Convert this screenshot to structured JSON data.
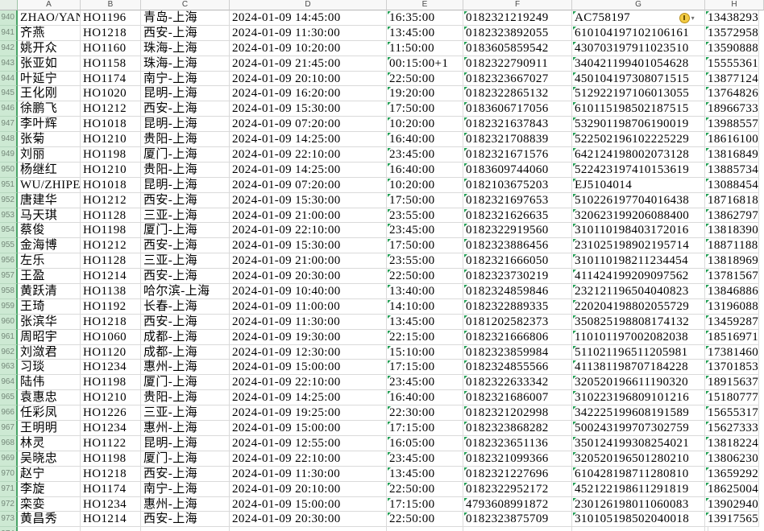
{
  "sheet": {
    "col_headers": [
      "A",
      "B",
      "C",
      "D",
      "E",
      "F",
      "G",
      "H"
    ],
    "visible_row_range": "940-974",
    "colors": {
      "row_header_bg": "#cde9d3",
      "row_header_accent": "#4aa468",
      "grid_line": "#dadada",
      "text_indicator_triangle": "#1f9e52",
      "warning_icon_fill": "#f3cb43",
      "warning_icon_border": "#b98f19"
    },
    "icons": {
      "warning_icon": "yellow-circle-exclamation",
      "warning_caret": "▾"
    }
  },
  "rows": [
    {
      "n": "940",
      "name": "ZHAO/YAN",
      "flight": "HO1196",
      "route": "青岛-上海",
      "depart": "2024-01-09 14:45:00",
      "arrive": "16:35:00",
      "ticket": "0182321219249",
      "id": "AC758197",
      "phone": "13438293",
      "warn": true
    },
    {
      "n": "941",
      "name": "齐燕",
      "flight": "HO1218",
      "route": "西安-上海",
      "depart": "2024-01-09 11:30:00",
      "arrive": "13:45:00",
      "ticket": "0182323892055",
      "id": "610104197102106161",
      "phone": "13572958"
    },
    {
      "n": "942",
      "name": "姚开众",
      "flight": "HO1160",
      "route": "珠海-上海",
      "depart": "2024-01-09 10:20:00",
      "arrive": "11:50:00",
      "ticket": "0183605859542",
      "id": "430703197911023510",
      "phone": "13590888"
    },
    {
      "n": "943",
      "name": "张亚如",
      "flight": "HO1158",
      "route": "珠海-上海",
      "depart": "2024-01-09 21:45:00",
      "arrive": "00:15:00+1",
      "ticket": "0182322790911",
      "id": "340421199401054628",
      "phone": "15555361"
    },
    {
      "n": "944",
      "name": "叶延宁",
      "flight": "HO1174",
      "route": "南宁-上海",
      "depart": "2024-01-09 20:10:00",
      "arrive": "22:50:00",
      "ticket": "0182323667027",
      "id": "450104197308071515",
      "phone": "13877124"
    },
    {
      "n": "945",
      "name": "王化刚",
      "flight": "HO1020",
      "route": "昆明-上海",
      "depart": "2024-01-09 16:20:00",
      "arrive": "19:20:00",
      "ticket": "0182322865132",
      "id": "512922197106013055",
      "phone": "13764826"
    },
    {
      "n": "946",
      "name": "徐鹏飞",
      "flight": "HO1212",
      "route": "西安-上海",
      "depart": "2024-01-09 15:30:00",
      "arrive": "17:50:00",
      "ticket": "0183606717056",
      "id": "610115198502187515",
      "phone": "18966733"
    },
    {
      "n": "947",
      "name": "李叶辉",
      "flight": "HO1018",
      "route": "昆明-上海",
      "depart": "2024-01-09 07:20:00",
      "arrive": "10:20:00",
      "ticket": "0182321637843",
      "id": "532901198706190019",
      "phone": "13988557"
    },
    {
      "n": "948",
      "name": "张菊",
      "flight": "HO1210",
      "route": "贵阳-上海",
      "depart": "2024-01-09 14:25:00",
      "arrive": "16:40:00",
      "ticket": "0182321708839",
      "id": "522502196102225229",
      "phone": "18616100"
    },
    {
      "n": "949",
      "name": "刘丽",
      "flight": "HO1198",
      "route": "厦门-上海",
      "depart": "2024-01-09 22:10:00",
      "arrive": "23:45:00",
      "ticket": "0182321671576",
      "id": "642124198002073128",
      "phone": "13816849"
    },
    {
      "n": "950",
      "name": "杨继红",
      "flight": "HO1210",
      "route": "贵阳-上海",
      "depart": "2024-01-09 14:25:00",
      "arrive": "16:40:00",
      "ticket": "0183609744060",
      "id": "522423197410153619",
      "phone": "13885734"
    },
    {
      "n": "951",
      "name": "WU/ZHIPEN",
      "flight": "HO1018",
      "route": "昆明-上海",
      "depart": "2024-01-09 07:20:00",
      "arrive": "10:20:00",
      "ticket": "0182103675203",
      "id": "EJ5104014",
      "phone": "13088454"
    },
    {
      "n": "952",
      "name": "唐建华",
      "flight": "HO1212",
      "route": "西安-上海",
      "depart": "2024-01-09 15:30:00",
      "arrive": "17:50:00",
      "ticket": "0182321697653",
      "id": "510226197704016438",
      "phone": "18716818"
    },
    {
      "n": "953",
      "name": "马天琪",
      "flight": "HO1128",
      "route": "三亚-上海",
      "depart": "2024-01-09 21:00:00",
      "arrive": "23:55:00",
      "ticket": "0182321626635",
      "id": "320623199206088400",
      "phone": "13862797"
    },
    {
      "n": "954",
      "name": "蔡俊",
      "flight": "HO1198",
      "route": "厦门-上海",
      "depart": "2024-01-09 22:10:00",
      "arrive": "23:45:00",
      "ticket": "0182322919560",
      "id": "310110198403172016",
      "phone": "13818390"
    },
    {
      "n": "955",
      "name": "金海博",
      "flight": "HO1212",
      "route": "西安-上海",
      "depart": "2024-01-09 15:30:00",
      "arrive": "17:50:00",
      "ticket": "0182323886456",
      "id": "231025198902195714",
      "phone": "18871188"
    },
    {
      "n": "956",
      "name": "左乐",
      "flight": "HO1128",
      "route": "三亚-上海",
      "depart": "2024-01-09 21:00:00",
      "arrive": "23:55:00",
      "ticket": "0182321666050",
      "id": "310110198211234454",
      "phone": "13818969"
    },
    {
      "n": "957",
      "name": "王盈",
      "flight": "HO1214",
      "route": "西安-上海",
      "depart": "2024-01-09 20:30:00",
      "arrive": "22:50:00",
      "ticket": "0182323730219",
      "id": "411424199209097562",
      "phone": "13781567"
    },
    {
      "n": "958",
      "name": "黄跃清",
      "flight": "HO1138",
      "route": "哈尔滨-上海",
      "depart": "2024-01-09 10:40:00",
      "arrive": "13:40:00",
      "ticket": "0182324859846",
      "id": "232121196504040823",
      "phone": "13846886"
    },
    {
      "n": "959",
      "name": "王琦",
      "flight": "HO1192",
      "route": "长春-上海",
      "depart": "2024-01-09 11:00:00",
      "arrive": "14:10:00",
      "ticket": "0182322889335",
      "id": "220204198802055729",
      "phone": "13196088"
    },
    {
      "n": "960",
      "name": "张滨华",
      "flight": "HO1218",
      "route": "西安-上海",
      "depart": "2024-01-09 11:30:00",
      "arrive": "13:45:00",
      "ticket": "0181202582373",
      "id": "350825198808174132",
      "phone": "13459287"
    },
    {
      "n": "961",
      "name": "周昭宇",
      "flight": "HO1060",
      "route": "成都-上海",
      "depart": "2024-01-09 19:30:00",
      "arrive": "22:15:00",
      "ticket": "0182321666806",
      "id": "110101197002082038",
      "phone": "18516971"
    },
    {
      "n": "962",
      "name": "刘潋君",
      "flight": "HO1120",
      "route": "成都-上海",
      "depart": "2024-01-09 12:30:00",
      "arrive": "15:10:00",
      "ticket": "0182323859984",
      "id": "511021196511205981",
      "phone": "17381460"
    },
    {
      "n": "963",
      "name": "习琰",
      "flight": "HO1234",
      "route": "惠州-上海",
      "depart": "2024-01-09 15:00:00",
      "arrive": "17:15:00",
      "ticket": "0182324855566",
      "id": "411381198707184228",
      "phone": "13701853"
    },
    {
      "n": "964",
      "name": "陆伟",
      "flight": "HO1198",
      "route": "厦门-上海",
      "depart": "2024-01-09 22:10:00",
      "arrive": "23:45:00",
      "ticket": "0182322633342",
      "id": "320520196611190320",
      "phone": "18915637"
    },
    {
      "n": "965",
      "name": "袁惠忠",
      "flight": "HO1210",
      "route": "贵阳-上海",
      "depart": "2024-01-09 14:25:00",
      "arrive": "16:40:00",
      "ticket": "0182321686007",
      "id": "310223196809101216",
      "phone": "15180777"
    },
    {
      "n": "966",
      "name": "任彩凤",
      "flight": "HO1226",
      "route": "三亚-上海",
      "depart": "2024-01-09 19:25:00",
      "arrive": "22:30:00",
      "ticket": "0182321202998",
      "id": "342225199608191589",
      "phone": "15655317"
    },
    {
      "n": "967",
      "name": "王明明",
      "flight": "HO1234",
      "route": "惠州-上海",
      "depart": "2024-01-09 15:00:00",
      "arrive": "17:15:00",
      "ticket": "0182323868282",
      "id": "500243199707302759",
      "phone": "15627333"
    },
    {
      "n": "968",
      "name": "林灵",
      "flight": "HO1122",
      "route": "昆明-上海",
      "depart": "2024-01-09 12:55:00",
      "arrive": "16:05:00",
      "ticket": "0182323651136",
      "id": "350124199308254021",
      "phone": "13818224"
    },
    {
      "n": "969",
      "name": "吴晓忠",
      "flight": "HO1198",
      "route": "厦门-上海",
      "depart": "2024-01-09 22:10:00",
      "arrive": "23:45:00",
      "ticket": "0182321099366",
      "id": "320520196501280210",
      "phone": "13806230"
    },
    {
      "n": "970",
      "name": "赵宁",
      "flight": "HO1218",
      "route": "西安-上海",
      "depart": "2024-01-09 11:30:00",
      "arrive": "13:45:00",
      "ticket": "0182321227696",
      "id": "610428198711280810",
      "phone": "13659292"
    },
    {
      "n": "971",
      "name": "李旋",
      "flight": "HO1174",
      "route": "南宁-上海",
      "depart": "2024-01-09 20:10:00",
      "arrive": "22:50:00",
      "ticket": "0182322952172",
      "id": "452122198611291819",
      "phone": "18625004"
    },
    {
      "n": "972",
      "name": "栾娈",
      "flight": "HO1234",
      "route": "惠州-上海",
      "depart": "2024-01-09 15:00:00",
      "arrive": "17:15:00",
      "ticket": "4793608991872",
      "id": "230126198011060083",
      "phone": "13902940"
    },
    {
      "n": "973",
      "name": "黄昌秀",
      "flight": "HO1214",
      "route": "西安-上海",
      "depart": "2024-01-09 20:30:00",
      "arrive": "22:50:00",
      "ticket": "0182323875709",
      "id": "310105198502040018",
      "phone": "13917565"
    },
    {
      "n": "974",
      "name": "",
      "flight": "",
      "route": "",
      "depart": "",
      "arrive": "",
      "ticket": "",
      "id": "",
      "phone": ""
    }
  ]
}
